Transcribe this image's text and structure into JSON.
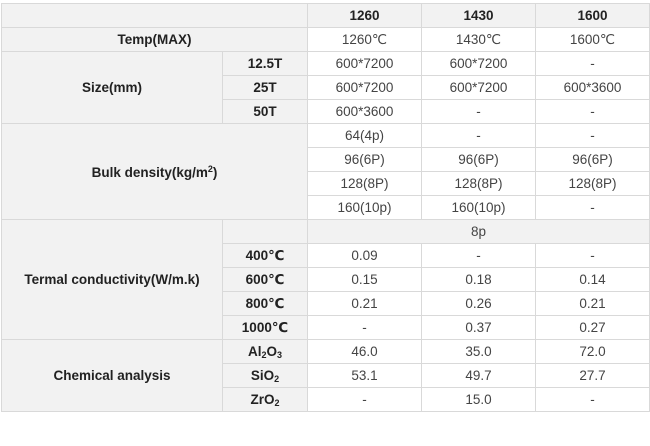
{
  "header": {
    "c1": "1260",
    "c2": "1430",
    "c3": "1600"
  },
  "temp": {
    "label": "Temp(MAX)",
    "v1": "1260℃",
    "v2": "1430℃",
    "v3": "1600℃"
  },
  "size": {
    "label": "Size(mm)",
    "rows": [
      {
        "sub": "12.5T",
        "v1": "600*7200",
        "v2": "600*7200",
        "v3": "-"
      },
      {
        "sub": "25T",
        "v1": "600*7200",
        "v2": "600*7200",
        "v3": "600*3600"
      },
      {
        "sub": "50T",
        "v1": "600*3600",
        "v2": "-",
        "v3": "-"
      }
    ]
  },
  "density": {
    "label_pre": "Bulk density(kg/m",
    "label_sup": "2",
    "label_post": ")",
    "rows": [
      {
        "v1": "64(4p)",
        "v2": "-",
        "v3": "-"
      },
      {
        "v1": "96(6P)",
        "v2": "96(6P)",
        "v3": "96(6P)"
      },
      {
        "v1": "128(8P)",
        "v2": "128(8P)",
        "v3": "128(8P)"
      },
      {
        "v1": "160(10p)",
        "v2": "160(10p)",
        "v3": "-"
      }
    ]
  },
  "conductivity": {
    "label": "Termal conductivity(W/m.k)",
    "span_note": "8p",
    "rows": [
      {
        "sub": "400℃",
        "v1": "0.09",
        "v2": "-",
        "v3": "-"
      },
      {
        "sub": "600℃",
        "v1": "0.15",
        "v2": "0.18",
        "v3": "0.14"
      },
      {
        "sub": "800℃",
        "v1": "0.21",
        "v2": "0.26",
        "v3": "0.21"
      },
      {
        "sub": "1000℃",
        "v1": "-",
        "v2": "0.37",
        "v3": "0.27"
      }
    ]
  },
  "chemical": {
    "label": "Chemical analysis",
    "rows": [
      {
        "sub_a": "Al",
        "sub_n1": "2",
        "sub_b": "O",
        "sub_n2": "3",
        "v1": "46.0",
        "v2": "35.0",
        "v3": "72.0"
      },
      {
        "sub_a": "SiO",
        "sub_n1": "2",
        "v1": "53.1",
        "v2": "49.7",
        "v3": "27.7"
      },
      {
        "sub_a": "ZrO",
        "sub_n1": "2",
        "v1": "-",
        "v2": "15.0",
        "v3": "-"
      }
    ]
  }
}
